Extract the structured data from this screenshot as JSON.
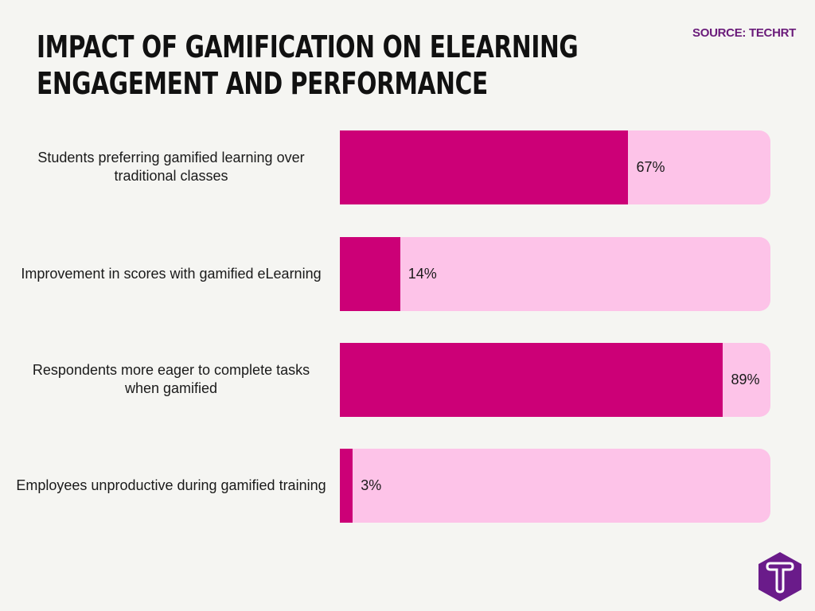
{
  "title_line1": "IMPACT OF GAMIFICATION ON ELEARNING",
  "title_line2": "ENGAGEMENT AND PERFORMANCE",
  "source": "SOURCE: TECHRT",
  "colors": {
    "bar": "#cc0077",
    "track": "#fdc3e8",
    "logo": "#6a1b8a"
  },
  "logo_text": "T",
  "chart_data": {
    "type": "bar",
    "orientation": "horizontal",
    "title": "IMPACT OF GAMIFICATION ON ELEARNING ENGAGEMENT AND PERFORMANCE",
    "categories": [
      "Students preferring gamified learning over traditional classes",
      "Improvement in scores with gamified eLearning",
      "Respondents more eager to complete tasks when gamified",
      "Employees unproductive during gamified training"
    ],
    "values": [
      67,
      14,
      89,
      3
    ],
    "value_labels": [
      "67%",
      "14%",
      "89%",
      "3%"
    ],
    "xlim": [
      0,
      100
    ],
    "xlabel": "",
    "ylabel": ""
  }
}
